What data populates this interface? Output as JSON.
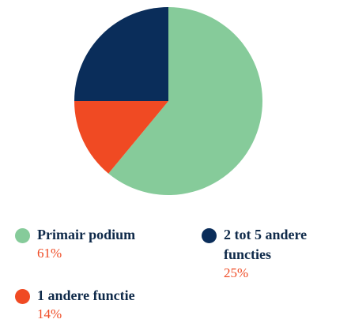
{
  "chart_data": {
    "type": "pie",
    "categories": [
      "Primair podium",
      "1 andere functie",
      "2 tot 5 andere functies"
    ],
    "values": [
      61,
      14,
      25
    ],
    "value_labels": [
      "61%",
      "14%",
      "25%"
    ],
    "colors": [
      "#86cb9a",
      "#f04a23",
      "#0a2d5a"
    ]
  }
}
